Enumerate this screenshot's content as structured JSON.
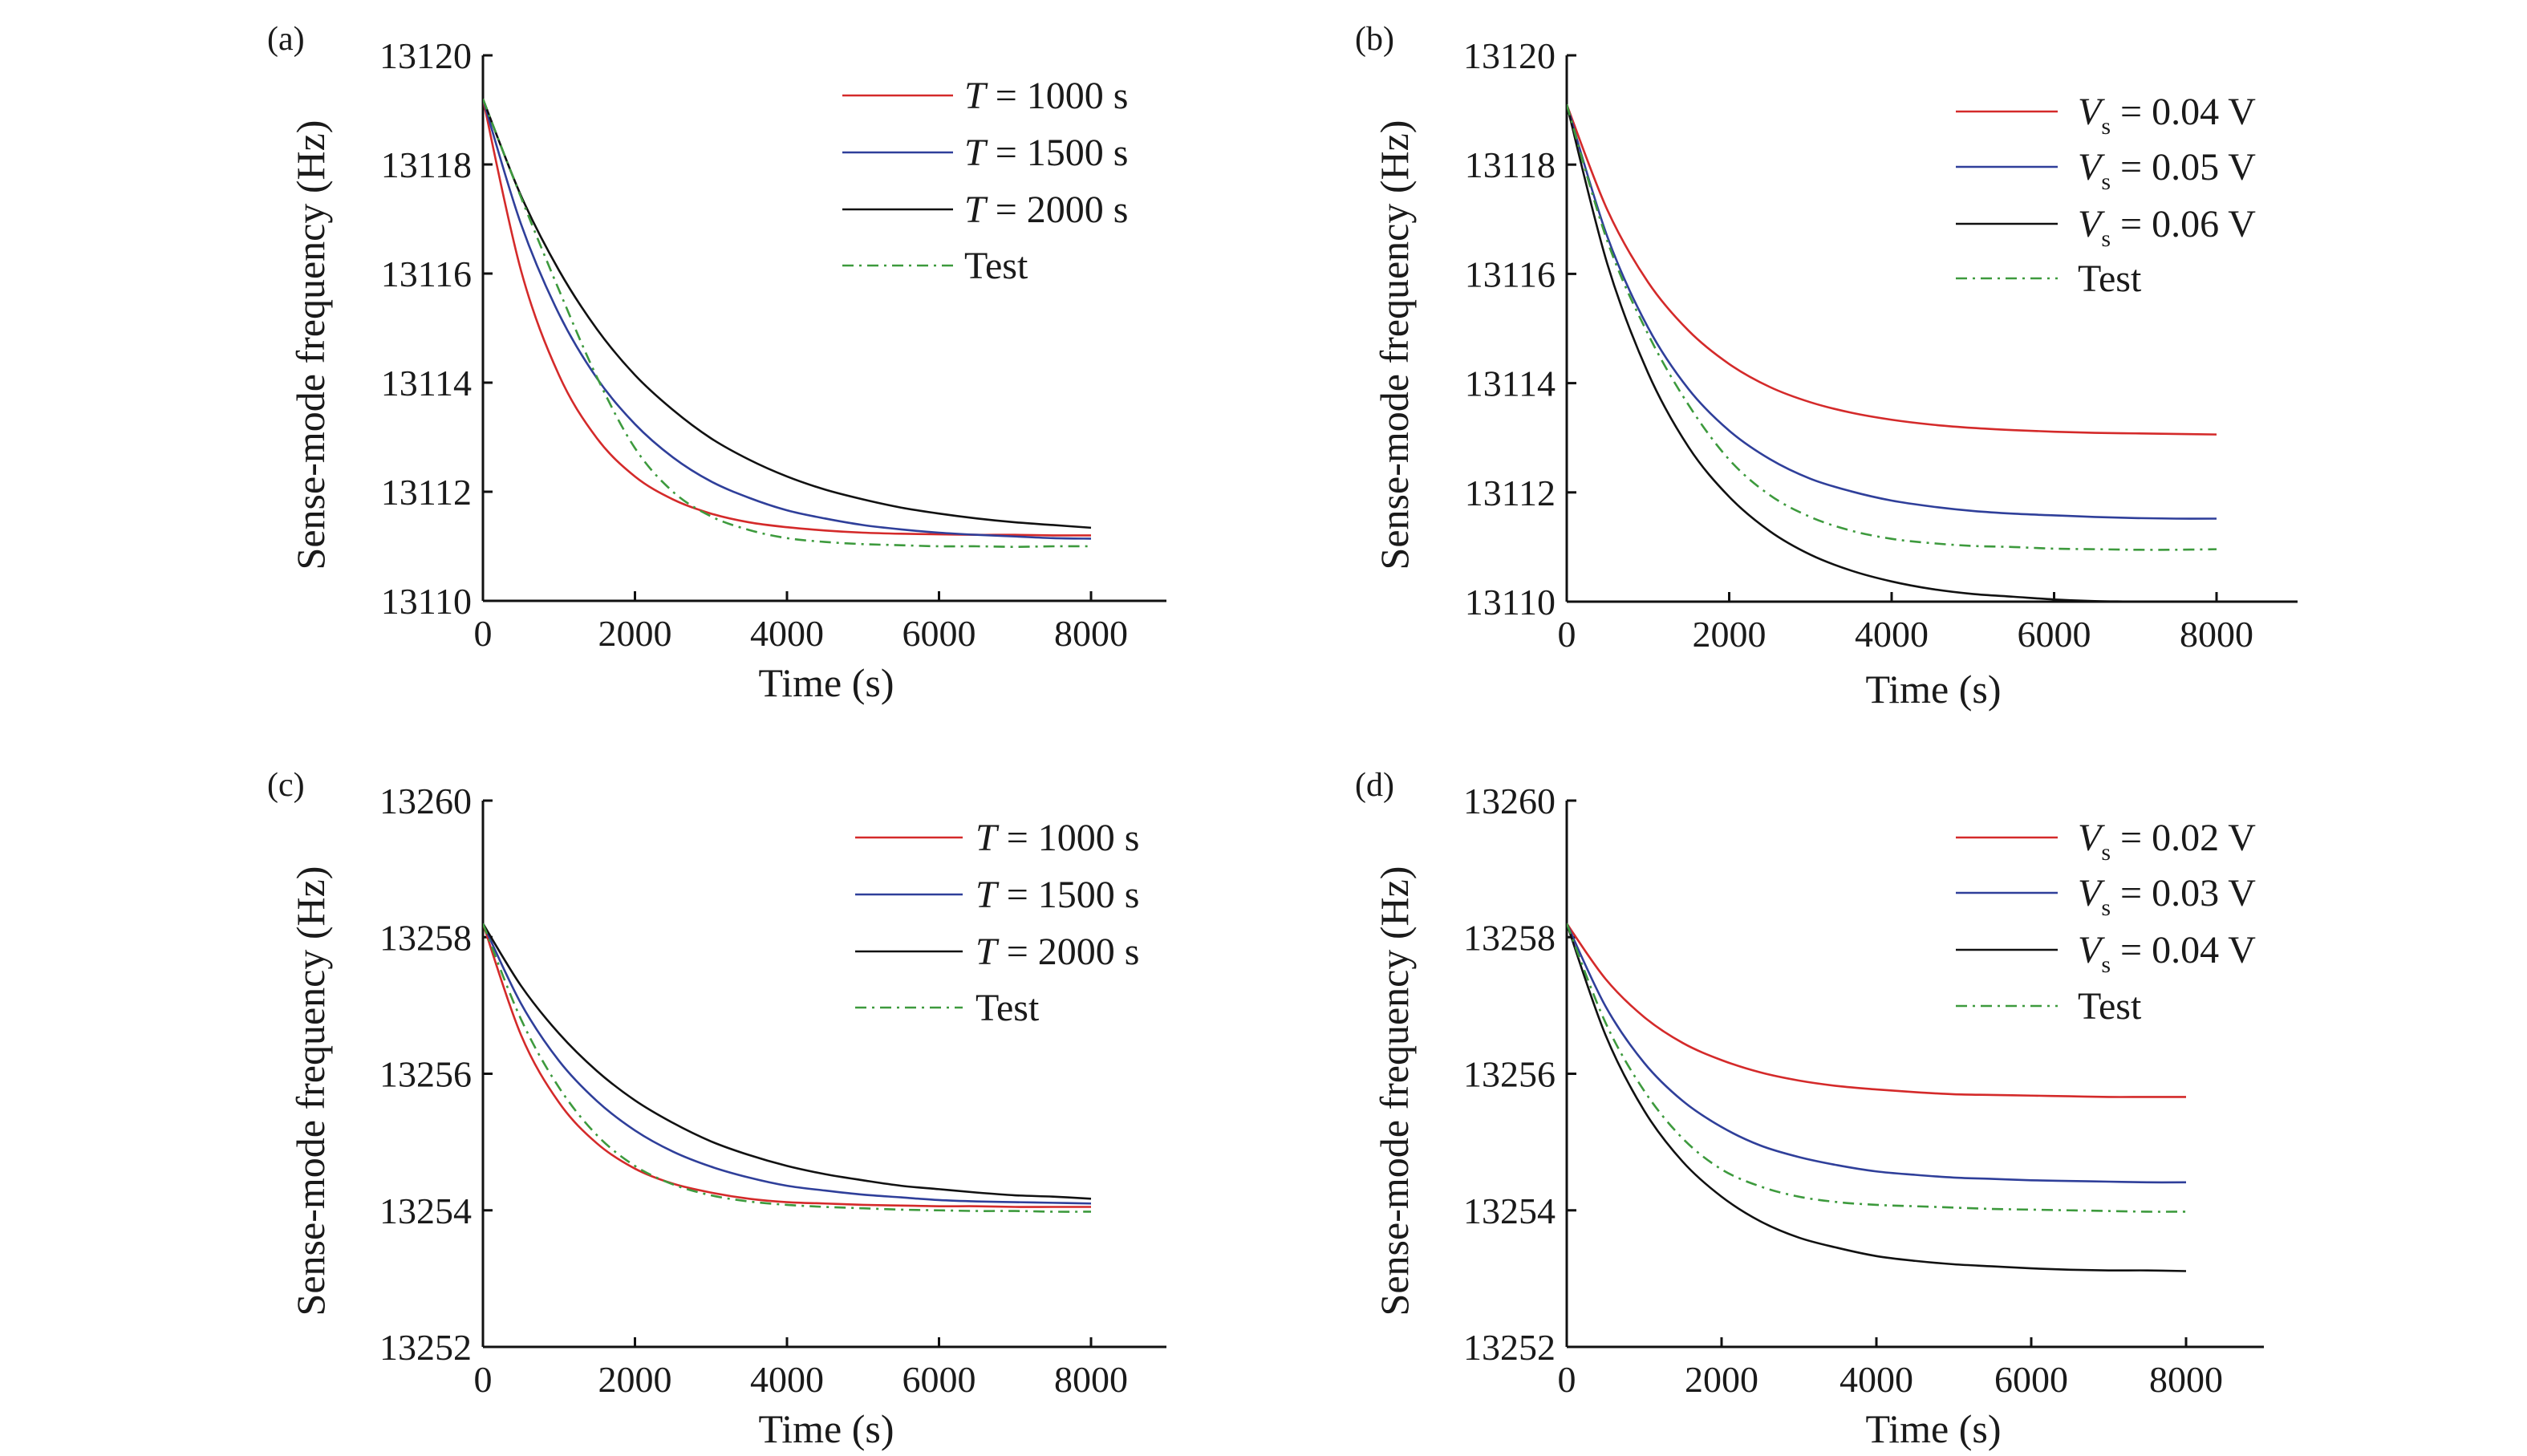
{
  "colors": {
    "red": "#d42a2a",
    "blue": "#2f3f9a",
    "black": "#111111",
    "green": "#3d9a3d"
  },
  "chart_data": [
    {
      "panel": "(a)",
      "type": "line",
      "xlabel": "Time (s)",
      "ylabel": "Sense-mode frequency (Hz)",
      "xlim": [
        0,
        9000
      ],
      "ylim": [
        13110,
        13120
      ],
      "xticks": [
        0,
        2000,
        4000,
        6000,
        8000
      ],
      "yticks": [
        13110,
        13112,
        13114,
        13116,
        13118,
        13120
      ],
      "legend_position": "top-right",
      "x": [
        0,
        500,
        1000,
        1500,
        2000,
        2500,
        3000,
        3500,
        4000,
        4500,
        5000,
        5500,
        6000,
        6500,
        7000,
        7500,
        8000
      ],
      "series": [
        {
          "var": "T",
          "sub": "",
          "rest": " = 1000 s",
          "color": "red",
          "style": "solid",
          "values": [
            13119.2,
            13116.06,
            13114.14,
            13112.98,
            13112.28,
            13111.86,
            13111.6,
            13111.44,
            13111.35,
            13111.29,
            13111.25,
            13111.23,
            13111.22,
            13111.21,
            13111.21,
            13111.2,
            13111.2
          ]
        },
        {
          "var": "T",
          "sub": "",
          "rest": " = 1500 s",
          "color": "blue",
          "style": "solid",
          "values": [
            13119.2,
            13116.91,
            13115.26,
            13114.08,
            13113.24,
            13112.63,
            13112.19,
            13111.89,
            13111.66,
            13111.51,
            13111.39,
            13111.31,
            13111.25,
            13111.21,
            13111.18,
            13111.15,
            13111.14
          ]
        },
        {
          "var": "T",
          "sub": "",
          "rest": " = 2000 s",
          "color": "black",
          "style": "solid",
          "values": [
            13119.2,
            13117.43,
            13116.06,
            13114.98,
            13114.14,
            13113.5,
            13112.98,
            13112.59,
            13112.28,
            13112.04,
            13111.86,
            13111.71,
            13111.6,
            13111.51,
            13111.44,
            13111.39,
            13111.34
          ]
        },
        {
          "var": "",
          "sub": "",
          "rest": "Test",
          "color": "green",
          "style": "dashdot",
          "values": [
            13119.2,
            13117.4,
            13115.7,
            13114.1,
            13112.8,
            13112.0,
            13111.55,
            13111.3,
            13111.15,
            13111.08,
            13111.04,
            13111.02,
            13111.0,
            13111.0,
            13110.99,
            13111.0,
            13111.0
          ]
        }
      ]
    },
    {
      "panel": "(b)",
      "type": "line",
      "xlabel": "Time (s)",
      "ylabel": "Sense-mode frequency (Hz)",
      "xlim": [
        0,
        9000
      ],
      "ylim": [
        13110,
        13120
      ],
      "xticks": [
        0,
        2000,
        4000,
        6000,
        8000
      ],
      "yticks": [
        13110,
        13112,
        13114,
        13116,
        13118,
        13120
      ],
      "legend_position": "top-right",
      "x": [
        0,
        500,
        1000,
        1500,
        2000,
        2500,
        3000,
        3500,
        4000,
        4500,
        5000,
        5500,
        6000,
        6500,
        7000,
        7500,
        8000
      ],
      "series": [
        {
          "var": "V",
          "sub": "s",
          "rest": " = 0.04 V",
          "color": "red",
          "style": "solid",
          "values": [
            13119.1,
            13117.17,
            13115.85,
            13114.96,
            13114.35,
            13113.93,
            13113.65,
            13113.46,
            13113.33,
            13113.24,
            13113.18,
            13113.14,
            13113.11,
            13113.09,
            13113.08,
            13113.07,
            13113.06
          ]
        },
        {
          "var": "V",
          "sub": "s",
          "rest": " = 0.05 V",
          "color": "blue",
          "style": "solid",
          "values": [
            13119.1,
            13116.68,
            13115.02,
            13113.89,
            13113.13,
            13112.61,
            13112.25,
            13112.02,
            13111.85,
            13111.74,
            13111.66,
            13111.61,
            13111.58,
            13111.55,
            13111.53,
            13111.52,
            13111.52
          ]
        },
        {
          "var": "V",
          "sub": "s",
          "rest": " = 0.06 V",
          "color": "black",
          "style": "solid",
          "values": [
            13119.1,
            13116.18,
            13114.19,
            13112.83,
            13111.92,
            13111.29,
            13110.86,
            13110.57,
            13110.37,
            13110.23,
            13110.14,
            13110.09,
            13110.04,
            13110.01,
            13110.0,
            13109.98,
            13109.97
          ]
        },
        {
          "var": "",
          "sub": "",
          "rest": "Test",
          "color": "green",
          "style": "dashdot",
          "values": [
            13119.1,
            13116.6,
            13114.9,
            13113.6,
            13112.6,
            13111.95,
            13111.55,
            13111.3,
            13111.15,
            13111.07,
            13111.02,
            13111.0,
            13110.97,
            13110.96,
            13110.95,
            13110.95,
            13110.96
          ]
        }
      ]
    },
    {
      "panel": "(c)",
      "type": "line",
      "xlabel": "Time (s)",
      "ylabel": "Sense-mode frequency (Hz)",
      "xlim": [
        0,
        9000
      ],
      "ylim": [
        13252,
        13260
      ],
      "xticks": [
        0,
        2000,
        4000,
        6000,
        8000
      ],
      "yticks": [
        13252,
        13254,
        13256,
        13258,
        13260
      ],
      "legend_position": "top-right",
      "x": [
        0,
        500,
        1000,
        1500,
        2000,
        2500,
        3000,
        3500,
        4000,
        4500,
        5000,
        5500,
        6000,
        6500,
        7000,
        7500,
        8000
      ],
      "series": [
        {
          "var": "T",
          "sub": "",
          "rest": " = 1000 s",
          "color": "red",
          "style": "solid",
          "values": [
            13258.2,
            13256.57,
            13255.58,
            13254.98,
            13254.61,
            13254.39,
            13254.26,
            13254.17,
            13254.12,
            13254.1,
            13254.08,
            13254.07,
            13254.06,
            13254.06,
            13254.05,
            13254.05,
            13254.05
          ]
        },
        {
          "var": "T",
          "sub": "",
          "rest": " = 1500 s",
          "color": "blue",
          "style": "solid",
          "values": [
            13258.2,
            13257.03,
            13256.19,
            13255.6,
            13255.17,
            13254.86,
            13254.64,
            13254.48,
            13254.36,
            13254.29,
            13254.23,
            13254.19,
            13254.15,
            13254.13,
            13254.12,
            13254.11,
            13254.1
          ]
        },
        {
          "var": "T",
          "sub": "",
          "rest": " = 2000 s",
          "color": "black",
          "style": "solid",
          "values": [
            13258.2,
            13257.29,
            13256.59,
            13256.04,
            13255.61,
            13255.28,
            13255.01,
            13254.81,
            13254.65,
            13254.53,
            13254.44,
            13254.36,
            13254.31,
            13254.26,
            13254.22,
            13254.2,
            13254.17
          ]
        },
        {
          "var": "",
          "sub": "",
          "rest": "Test",
          "color": "green",
          "style": "dashdot",
          "values": [
            13258.2,
            13256.8,
            13255.8,
            13255.1,
            13254.65,
            13254.38,
            13254.22,
            13254.13,
            13254.08,
            13254.05,
            13254.03,
            13254.01,
            13254.0,
            13253.99,
            13253.99,
            13253.98,
            13253.98
          ]
        }
      ]
    },
    {
      "panel": "(d)",
      "type": "line",
      "xlabel": "Time (s)",
      "ylabel": "Sense-mode frequency (Hz)",
      "xlim": [
        0,
        9000
      ],
      "ylim": [
        13252,
        13260
      ],
      "xticks": [
        0,
        2000,
        4000,
        6000,
        8000
      ],
      "yticks": [
        13252,
        13254,
        13256,
        13258,
        13260
      ],
      "legend_position": "top-right",
      "x": [
        0,
        500,
        1000,
        1500,
        2000,
        2500,
        3000,
        3500,
        4000,
        4500,
        5000,
        5500,
        6000,
        6500,
        7000,
        7500,
        8000
      ],
      "series": [
        {
          "var": "V",
          "sub": "s",
          "rest": " = 0.02 V",
          "color": "red",
          "style": "solid",
          "values": [
            13258.2,
            13257.39,
            13256.83,
            13256.45,
            13256.2,
            13256.02,
            13255.9,
            13255.82,
            13255.77,
            13255.73,
            13255.7,
            13255.69,
            13255.68,
            13255.67,
            13255.66,
            13255.66,
            13255.66
          ]
        },
        {
          "var": "V",
          "sub": "s",
          "rest": " = 0.03 V",
          "color": "blue",
          "style": "solid",
          "values": [
            13258.2,
            13256.99,
            13256.16,
            13255.6,
            13255.22,
            13254.95,
            13254.78,
            13254.66,
            13254.57,
            13254.52,
            13254.48,
            13254.46,
            13254.44,
            13254.43,
            13254.42,
            13254.41,
            13254.41
          ]
        },
        {
          "var": "V",
          "sub": "s",
          "rest": " = 0.04 V",
          "color": "black",
          "style": "solid",
          "values": [
            13258.2,
            13256.57,
            13255.46,
            13254.71,
            13254.2,
            13253.84,
            13253.6,
            13253.45,
            13253.33,
            13253.26,
            13253.21,
            13253.18,
            13253.15,
            13253.13,
            13253.12,
            13253.12,
            13253.11
          ]
        },
        {
          "var": "",
          "sub": "",
          "rest": "Test",
          "color": "green",
          "style": "dashdot",
          "values": [
            13258.2,
            13256.75,
            13255.75,
            13255.05,
            13254.6,
            13254.35,
            13254.2,
            13254.12,
            13254.08,
            13254.06,
            13254.04,
            13254.02,
            13254.01,
            13254.0,
            13253.99,
            13253.98,
            13253.98
          ]
        }
      ]
    }
  ]
}
